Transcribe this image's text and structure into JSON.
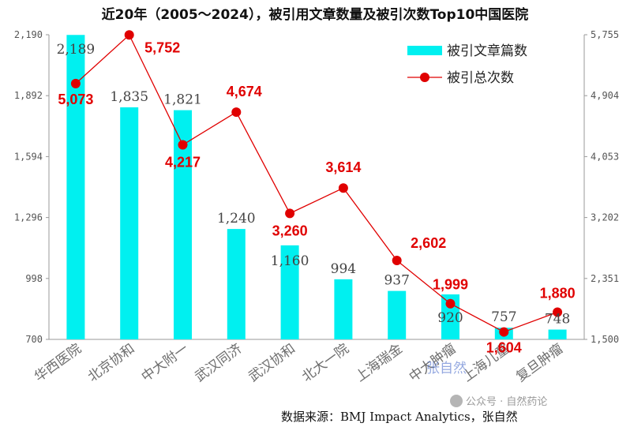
{
  "chart_data": {
    "type": "bar",
    "title": "近20年（2005～2024），被引用文章数量及被引次数Top10中国医院",
    "categories": [
      "华西医院",
      "北京协和",
      "中大附一",
      "武汉同济",
      "武汉协和",
      "北大一院",
      "上海瑞金",
      "中大肿瘤",
      "上海儿童",
      "复旦肿瘤"
    ],
    "series": [
      {
        "name": "被引文章篇数",
        "type": "bar",
        "axis": "left",
        "color": "#00f0f0",
        "values": [
          2189,
          1835,
          1821,
          1240,
          1160,
          994,
          937,
          920,
          757,
          748
        ],
        "labels": [
          "2,189",
          "1,835",
          "1,821",
          "1,240",
          "1,160",
          "994",
          "937",
          "920",
          "757",
          "748"
        ]
      },
      {
        "name": "被引总次数",
        "type": "line",
        "axis": "right",
        "color": "#e00000",
        "values": [
          5073,
          5752,
          4217,
          4674,
          3260,
          3614,
          2602,
          1999,
          1604,
          1880
        ],
        "labels": [
          "5,073",
          "5,752",
          "4,217",
          "4,674",
          "3,260",
          "3,614",
          "2,602",
          "1,999",
          "1,604",
          "1,880"
        ]
      }
    ],
    "left_axis": {
      "ylim": [
        700,
        2190
      ],
      "ticks": [
        "700",
        "998",
        "1,296",
        "1,594",
        "1,892",
        "2,190"
      ]
    },
    "right_axis": {
      "ylim": [
        1500,
        5755
      ],
      "ticks": [
        "1,500",
        "2,351",
        "3,202",
        "4,053",
        "4,904",
        "5,755"
      ]
    },
    "legend": {
      "position": "top-right"
    },
    "grid": false
  },
  "source_text": "数据来源：BMJ Impact Analytics，张自然",
  "watermark_text": "公众号 · 自然药论",
  "watermark_overlay": "张自然"
}
